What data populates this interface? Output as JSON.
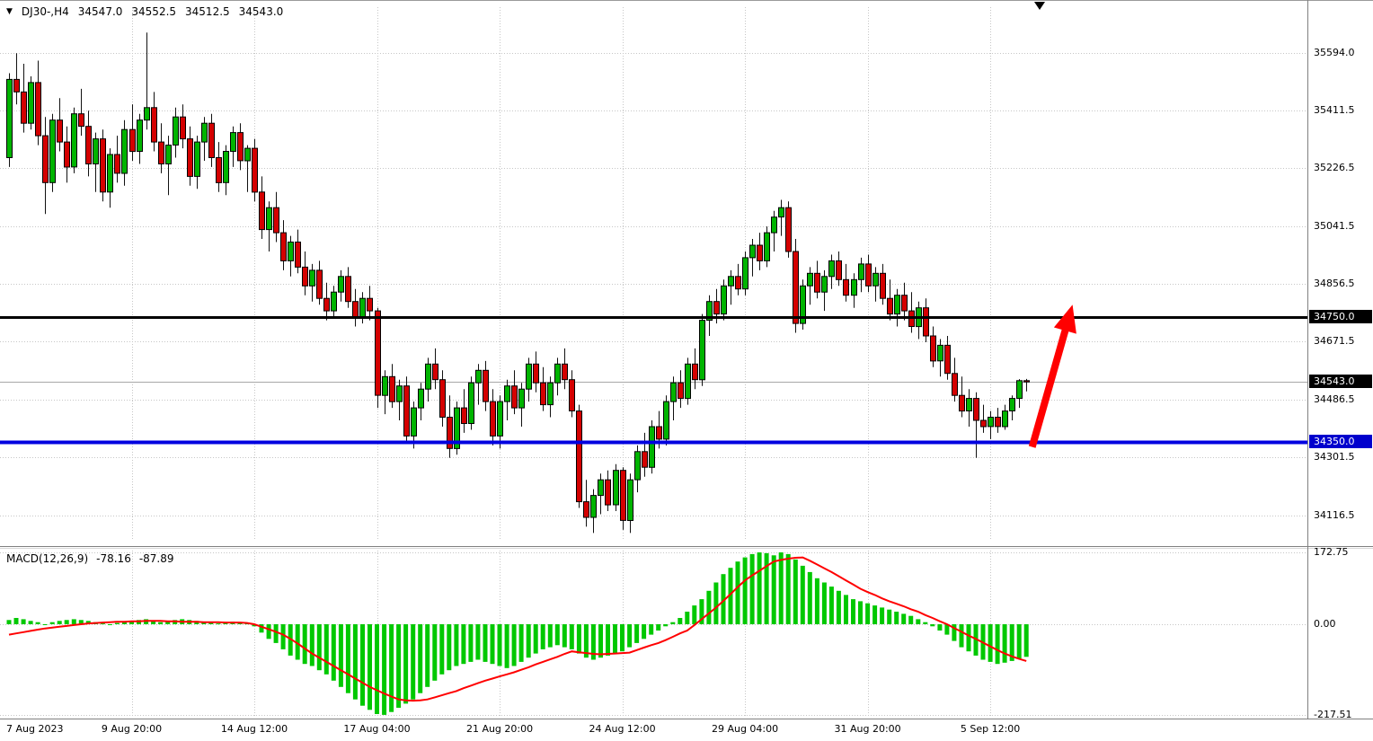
{
  "header": {
    "symbol_period": "DJ30-,H4",
    "open": "34547.0",
    "high": "34552.5",
    "low": "34512.5",
    "close": "34543.0"
  },
  "indicator": {
    "label": "MACD(12,26,9)",
    "macd_value": "-78.16",
    "signal_value": "-87.89"
  },
  "icons": {
    "symbol_dropdown": "▼"
  },
  "colors": {
    "candle_up": "#00B400",
    "candle_down": "#D40000",
    "candle_border": "#000000",
    "wick": "#111111",
    "grid": "#c6c6c6",
    "macd_histogram": "#00C800",
    "macd_signal": "#FF0000",
    "arrow": "#FF0000",
    "current_price_line": "#a8a8a8",
    "pane_border": "#808080"
  },
  "chart_data": [
    {
      "type": "candlestick",
      "symbol": "DJ30-",
      "timeframe": "H4",
      "ohlc_header": {
        "open": 34547.0,
        "high": 34552.5,
        "low": 34512.5,
        "close": 34543.0
      },
      "ylim": [
        34041,
        35741
      ],
      "y_ticks": [
        35594.0,
        35411.5,
        35226.5,
        35041.5,
        34856.5,
        34671.5,
        34486.5,
        34301.5,
        34116.5
      ],
      "y_badges": [
        {
          "value": 34750.0,
          "bg": "#000000",
          "name": "resistance-price-badge"
        },
        {
          "value": 34543.0,
          "bg": "#000000",
          "name": "current-price-badge"
        },
        {
          "value": 34350.0,
          "bg": "#0000CD",
          "name": "support-price-badge"
        }
      ],
      "hlines": [
        {
          "price": 34750.0,
          "color": "#000000",
          "width": 3,
          "name": "resistance-line"
        },
        {
          "price": 34350.0,
          "color": "#0000E0",
          "width": 4,
          "name": "support-line"
        }
      ],
      "current_price": 34543.0,
      "arrow": {
        "start_bar": 141.8,
        "start_price": 34335,
        "end_bar": 147.4,
        "end_price": 34790
      },
      "x_ticks": [
        {
          "bar": 0,
          "label": "7 Aug 2023"
        },
        {
          "bar": 17,
          "label": "9 Aug 20:00"
        },
        {
          "bar": 34,
          "label": "14 Aug 12:00"
        },
        {
          "bar": 51,
          "label": "17 Aug 04:00"
        },
        {
          "bar": 68,
          "label": "21 Aug 20:00"
        },
        {
          "bar": 85,
          "label": "24 Aug 12:00"
        },
        {
          "bar": 102,
          "label": "29 Aug 04:00"
        },
        {
          "bar": 119,
          "label": "31 Aug 20:00"
        },
        {
          "bar": 136,
          "label": "5 Sep 12:00"
        }
      ],
      "candles": [
        [
          35260,
          35530,
          35230,
          35510
        ],
        [
          35510,
          35594,
          35430,
          35470
        ],
        [
          35470,
          35560,
          35340,
          35370
        ],
        [
          35370,
          35520,
          35350,
          35500
        ],
        [
          35500,
          35570,
          35300,
          35330
        ],
        [
          35330,
          35390,
          35080,
          35180
        ],
        [
          35180,
          35400,
          35150,
          35380
        ],
        [
          35380,
          35450,
          35280,
          35310
        ],
        [
          35310,
          35360,
          35180,
          35230
        ],
        [
          35230,
          35420,
          35210,
          35400
        ],
        [
          35400,
          35480,
          35330,
          35360
        ],
        [
          35360,
          35410,
          35200,
          35240
        ],
        [
          35240,
          35340,
          35150,
          35320
        ],
        [
          35320,
          35350,
          35120,
          35150
        ],
        [
          35150,
          35290,
          35100,
          35270
        ],
        [
          35270,
          35330,
          35180,
          35210
        ],
        [
          35210,
          35380,
          35170,
          35350
        ],
        [
          35350,
          35430,
          35250,
          35280
        ],
        [
          35280,
          35400,
          35240,
          35380
        ],
        [
          35380,
          35660,
          35350,
          35420
        ],
        [
          35420,
          35470,
          35280,
          35310
        ],
        [
          35310,
          35370,
          35210,
          35240
        ],
        [
          35240,
          35330,
          35140,
          35300
        ],
        [
          35300,
          35420,
          35260,
          35390
        ],
        [
          35390,
          35430,
          35290,
          35320
        ],
        [
          35320,
          35360,
          35170,
          35200
        ],
        [
          35200,
          35330,
          35160,
          35310
        ],
        [
          35310,
          35390,
          35250,
          35370
        ],
        [
          35370,
          35400,
          35230,
          35260
        ],
        [
          35260,
          35310,
          35150,
          35180
        ],
        [
          35180,
          35300,
          35140,
          35280
        ],
        [
          35280,
          35360,
          35230,
          35340
        ],
        [
          35340,
          35370,
          35220,
          35250
        ],
        [
          35250,
          35300,
          35150,
          35290
        ],
        [
          35290,
          35320,
          35120,
          35150
        ],
        [
          35150,
          35200,
          35000,
          35030
        ],
        [
          35030,
          35120,
          34960,
          35100
        ],
        [
          35100,
          35150,
          34990,
          35020
        ],
        [
          35020,
          35060,
          34900,
          34930
        ],
        [
          34930,
          35010,
          34880,
          34990
        ],
        [
          34990,
          35030,
          34890,
          34910
        ],
        [
          34910,
          34960,
          34820,
          34850
        ],
        [
          34850,
          34920,
          34800,
          34900
        ],
        [
          34900,
          34930,
          34790,
          34810
        ],
        [
          34810,
          34860,
          34740,
          34770
        ],
        [
          34770,
          34850,
          34750,
          34830
        ],
        [
          34830,
          34900,
          34800,
          34880
        ],
        [
          34880,
          34910,
          34780,
          34800
        ],
        [
          34800,
          34840,
          34720,
          34750
        ],
        [
          34750,
          34830,
          34730,
          34810
        ],
        [
          34810,
          34850,
          34740,
          34770
        ],
        [
          34770,
          34780,
          34460,
          34500
        ],
        [
          34500,
          34580,
          34440,
          34560
        ],
        [
          34560,
          34600,
          34460,
          34480
        ],
        [
          34480,
          34550,
          34420,
          34530
        ],
        [
          34530,
          34560,
          34350,
          34370
        ],
        [
          34370,
          34480,
          34330,
          34460
        ],
        [
          34460,
          34540,
          34420,
          34520
        ],
        [
          34520,
          34620,
          34480,
          34600
        ],
        [
          34600,
          34650,
          34520,
          34550
        ],
        [
          34550,
          34580,
          34400,
          34430
        ],
        [
          34430,
          34500,
          34300,
          34330
        ],
        [
          34330,
          34480,
          34310,
          34460
        ],
        [
          34460,
          34520,
          34380,
          34410
        ],
        [
          34410,
          34560,
          34390,
          34540
        ],
        [
          34540,
          34600,
          34470,
          34580
        ],
        [
          34580,
          34610,
          34450,
          34480
        ],
        [
          34480,
          34520,
          34340,
          34370
        ],
        [
          34370,
          34500,
          34330,
          34480
        ],
        [
          34480,
          34550,
          34420,
          34530
        ],
        [
          34530,
          34580,
          34440,
          34460
        ],
        [
          34460,
          34540,
          34400,
          34520
        ],
        [
          34520,
          34620,
          34480,
          34600
        ],
        [
          34600,
          34640,
          34510,
          34540
        ],
        [
          34540,
          34590,
          34450,
          34470
        ],
        [
          34470,
          34560,
          34430,
          34540
        ],
        [
          34540,
          34620,
          34500,
          34600
        ],
        [
          34600,
          34650,
          34520,
          34550
        ],
        [
          34550,
          34580,
          34430,
          34450
        ],
        [
          34450,
          34470,
          34140,
          34160
        ],
        [
          34160,
          34230,
          34080,
          34110
        ],
        [
          34110,
          34200,
          34060,
          34180
        ],
        [
          34180,
          34250,
          34120,
          34230
        ],
        [
          34230,
          34260,
          34130,
          34150
        ],
        [
          34150,
          34280,
          34130,
          34260
        ],
        [
          34260,
          34270,
          34070,
          34100
        ],
        [
          34100,
          34250,
          34060,
          34230
        ],
        [
          34230,
          34340,
          34190,
          34320
        ],
        [
          34320,
          34380,
          34240,
          34270
        ],
        [
          34270,
          34420,
          34250,
          34400
        ],
        [
          34400,
          34450,
          34330,
          34360
        ],
        [
          34360,
          34500,
          34340,
          34480
        ],
        [
          34480,
          34560,
          34420,
          34540
        ],
        [
          34540,
          34580,
          34460,
          34490
        ],
        [
          34490,
          34620,
          34470,
          34600
        ],
        [
          34600,
          34650,
          34520,
          34550
        ],
        [
          34550,
          34760,
          34530,
          34740
        ],
        [
          34740,
          34820,
          34690,
          34800
        ],
        [
          34800,
          34840,
          34730,
          34760
        ],
        [
          34760,
          34870,
          34740,
          34850
        ],
        [
          34850,
          34900,
          34790,
          34880
        ],
        [
          34880,
          34920,
          34820,
          34840
        ],
        [
          34840,
          34960,
          34820,
          34940
        ],
        [
          34940,
          35000,
          34880,
          34980
        ],
        [
          34980,
          35020,
          34900,
          34930
        ],
        [
          34930,
          35040,
          34910,
          35020
        ],
        [
          35020,
          35090,
          34960,
          35070
        ],
        [
          35070,
          35125,
          35010,
          35100
        ],
        [
          35100,
          35120,
          34940,
          34960
        ],
        [
          34960,
          35000,
          34700,
          34730
        ],
        [
          34730,
          34870,
          34710,
          34850
        ],
        [
          34850,
          34910,
          34790,
          34890
        ],
        [
          34890,
          34930,
          34810,
          34830
        ],
        [
          34830,
          34900,
          34770,
          34880
        ],
        [
          34880,
          34950,
          34840,
          34930
        ],
        [
          34930,
          34960,
          34850,
          34870
        ],
        [
          34870,
          34920,
          34800,
          34820
        ],
        [
          34820,
          34890,
          34780,
          34870
        ],
        [
          34870,
          34940,
          34830,
          34920
        ],
        [
          34920,
          34950,
          34830,
          34850
        ],
        [
          34850,
          34910,
          34800,
          34890
        ],
        [
          34890,
          34920,
          34790,
          34810
        ],
        [
          34810,
          34870,
          34740,
          34760
        ],
        [
          34760,
          34840,
          34720,
          34820
        ],
        [
          34820,
          34860,
          34740,
          34770
        ],
        [
          34770,
          34830,
          34700,
          34720
        ],
        [
          34720,
          34800,
          34680,
          34780
        ],
        [
          34780,
          34810,
          34670,
          34690
        ],
        [
          34690,
          34720,
          34590,
          34610
        ],
        [
          34610,
          34680,
          34560,
          34660
        ],
        [
          34660,
          34690,
          34550,
          34570
        ],
        [
          34570,
          34620,
          34480,
          34500
        ],
        [
          34500,
          34560,
          34430,
          34450
        ],
        [
          34450,
          34520,
          34400,
          34490
        ],
        [
          34490,
          34510,
          34300,
          34420
        ],
        [
          34420,
          34470,
          34380,
          34400
        ],
        [
          34400,
          34450,
          34360,
          34430
        ],
        [
          34430,
          34460,
          34380,
          34400
        ],
        [
          34400,
          34470,
          34390,
          34450
        ],
        [
          34450,
          34500,
          34420,
          34490
        ],
        [
          34490,
          34552,
          34460,
          34547
        ],
        [
          34547,
          34552.5,
          34512.5,
          34543
        ]
      ]
    },
    {
      "type": "bar+line",
      "name": "MACD(12,26,9)",
      "params": [
        12,
        26,
        9
      ],
      "macd_value": -78.16,
      "signal_value": -87.89,
      "ylim": [
        -219.3,
        176.3
      ],
      "y_ticks": [
        172.75,
        0,
        -217.51
      ],
      "histogram": [
        10,
        15,
        12,
        8,
        5,
        0,
        5,
        8,
        10,
        12,
        10,
        8,
        5,
        2,
        0,
        3,
        5,
        8,
        10,
        12,
        8,
        5,
        8,
        10,
        12,
        10,
        8,
        6,
        4,
        2,
        4,
        6,
        4,
        2,
        -5,
        -20,
        -35,
        -45,
        -60,
        -75,
        -85,
        -95,
        -100,
        -110,
        -120,
        -135,
        -150,
        -165,
        -180,
        -195,
        -205,
        -215,
        -217,
        -210,
        -200,
        -190,
        -180,
        -165,
        -150,
        -135,
        -120,
        -110,
        -100,
        -95,
        -90,
        -85,
        -90,
        -95,
        -100,
        -105,
        -100,
        -90,
        -80,
        -70,
        -60,
        -55,
        -50,
        -55,
        -60,
        -70,
        -80,
        -85,
        -80,
        -75,
        -70,
        -65,
        -55,
        -45,
        -35,
        -25,
        -15,
        -5,
        5,
        15,
        30,
        45,
        60,
        80,
        100,
        120,
        135,
        150,
        160,
        168,
        172,
        170,
        165,
        172,
        168,
        155,
        140,
        125,
        110,
        100,
        90,
        80,
        70,
        60,
        55,
        50,
        45,
        40,
        35,
        30,
        25,
        20,
        12,
        5,
        -5,
        -15,
        -25,
        -40,
        -55,
        -65,
        -75,
        -85,
        -90,
        -95,
        -92,
        -88,
        -82,
        -78
      ],
      "signal_line": [
        -25,
        -22,
        -19,
        -16,
        -13,
        -10,
        -8,
        -6,
        -4,
        -2,
        0,
        2,
        3,
        4,
        5,
        6,
        6,
        7,
        7,
        8,
        8,
        8,
        7,
        7,
        6,
        6,
        6,
        5,
        5,
        5,
        4,
        4,
        4,
        3,
        0,
        -6,
        -12,
        -18,
        -25,
        -35,
        -46,
        -58,
        -70,
        -80,
        -90,
        -100,
        -110,
        -120,
        -130,
        -140,
        -150,
        -158,
        -166,
        -173,
        -180,
        -182,
        -183,
        -182,
        -180,
        -175,
        -170,
        -165,
        -160,
        -153,
        -147,
        -141,
        -135,
        -130,
        -125,
        -120,
        -115,
        -109,
        -103,
        -96,
        -90,
        -84,
        -78,
        -71,
        -65,
        -67,
        -69,
        -71,
        -72,
        -71,
        -70,
        -69,
        -68,
        -62,
        -56,
        -50,
        -45,
        -38,
        -30,
        -22,
        -15,
        -2,
        12,
        26,
        40,
        56,
        72,
        89,
        105,
        117,
        128,
        139,
        150,
        154,
        157,
        159,
        160,
        152,
        143,
        134,
        125,
        115,
        105,
        95,
        85,
        77,
        70,
        62,
        55,
        49,
        43,
        36,
        30,
        22,
        15,
        7,
        0,
        -9,
        -18,
        -27,
        -35,
        -44,
        -53,
        -62,
        -70,
        -77,
        -83,
        -88
      ]
    }
  ]
}
